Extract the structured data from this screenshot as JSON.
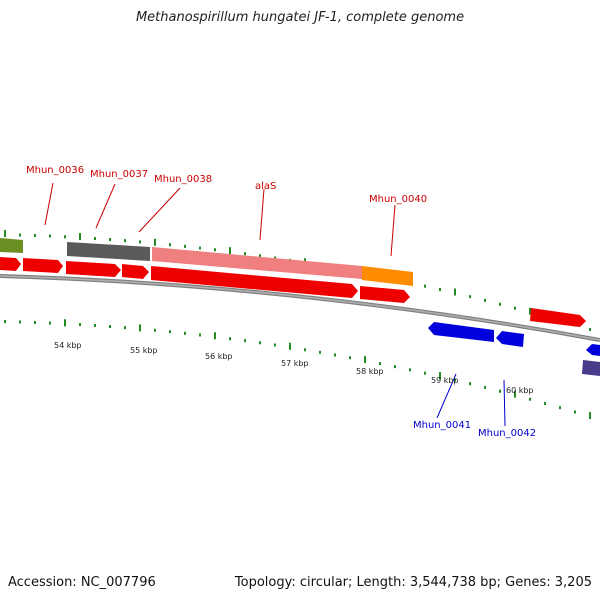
{
  "title": "Methanospirillum hungatei JF-1, complete genome",
  "footer": {
    "accession": "Accession: NC_007796",
    "summary": "Topology: circular; Length: 3,544,738 bp; Genes: 3,205"
  },
  "colors": {
    "forward_cds": "#ff0000",
    "reverse_cds": "#0000ff",
    "gene_label_forward": "#cc0000",
    "gene_label_reverse": "#0000cc",
    "tick": "#228B22",
    "backbone": "#808080",
    "olive_block": "#6b8e23",
    "gray_block": "#666666",
    "pink_block": "#f08080",
    "orange_block": "#ff8c00",
    "navy_block": "#483d8b"
  },
  "scale_labels": [
    "54 kbp",
    "55 kbp",
    "56 kbp",
    "57 kbp",
    "58 kbp",
    "59 kbp",
    "60 kbp"
  ],
  "gene_labels": {
    "forward": [
      "Mhun_0036",
      "Mhun_0037",
      "Mhun_0038",
      "alaS",
      "Mhun_0040"
    ],
    "reverse": [
      "Mhun_0041",
      "Mhun_0042"
    ]
  }
}
